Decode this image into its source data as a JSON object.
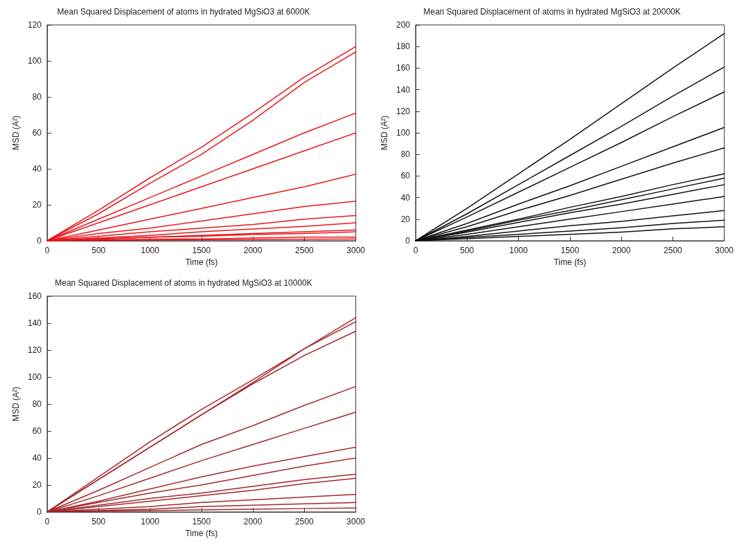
{
  "chart_data": [
    {
      "type": "line",
      "title": "Mean Squared Displacement of atoms in hydrated MgSiO3 at 6000K",
      "xlabel": "Time (fs)",
      "ylabel": "MSD (A²)",
      "x": [
        0,
        500,
        1000,
        1500,
        2000,
        2500,
        3000
      ],
      "xlim": [
        0,
        3000
      ],
      "xticks": [
        0,
        500,
        1000,
        1500,
        2000,
        2500,
        3000
      ],
      "ylim": [
        0,
        120
      ],
      "yticks": [
        0,
        20,
        40,
        60,
        80,
        100,
        120
      ],
      "series": [
        {
          "color": "#e8161b",
          "values": [
            0,
            17,
            35,
            52,
            71,
            91,
            108
          ]
        },
        {
          "color": "#e8161b",
          "values": [
            0,
            15,
            32,
            48,
            67,
            88,
            105
          ]
        },
        {
          "color": "#e8161b",
          "values": [
            0,
            12,
            24,
            36,
            48,
            60,
            71
          ]
        },
        {
          "color": "#e8161b",
          "values": [
            0,
            10,
            20,
            30,
            40,
            50,
            60
          ]
        },
        {
          "color": "#e8161b",
          "values": [
            0,
            6,
            12,
            18,
            24,
            30,
            37
          ]
        },
        {
          "color": "#e8161b",
          "values": [
            0,
            4,
            7,
            11,
            15,
            19,
            22
          ]
        },
        {
          "color": "#e8161b",
          "values": [
            0,
            2.5,
            5,
            7,
            9,
            12,
            14
          ]
        },
        {
          "color": "#e8161b",
          "values": [
            0,
            1.5,
            3,
            5,
            6.5,
            8,
            10
          ]
        },
        {
          "color": "#e8161b",
          "values": [
            0,
            1,
            2,
            3,
            4,
            5,
            6
          ]
        },
        {
          "color": "#e8161b",
          "values": [
            0,
            1,
            2,
            2.5,
            3.5,
            4,
            5
          ]
        },
        {
          "color": "#e8161b",
          "values": [
            0,
            0.5,
            1,
            1,
            1.5,
            2,
            2
          ]
        },
        {
          "color": "#e8161b",
          "values": [
            0,
            0.2,
            0.4,
            0.6,
            0.7,
            0.9,
            1
          ]
        }
      ]
    },
    {
      "type": "line",
      "title": "Mean Squared Displacement of atoms in hydrated MgSiO3 at 20000K",
      "xlabel": "Time (fs)",
      "ylabel": "MSD (A²)",
      "x": [
        0,
        500,
        1000,
        1500,
        2000,
        2500,
        3000
      ],
      "xlim": [
        0,
        3000
      ],
      "xticks": [
        0,
        500,
        1000,
        1500,
        2000,
        2500,
        3000
      ],
      "ylim": [
        0,
        200
      ],
      "yticks": [
        0,
        20,
        40,
        60,
        80,
        100,
        120,
        140,
        160,
        180,
        200
      ],
      "series": [
        {
          "color": "#111111",
          "values": [
            0,
            30,
            62,
            94,
            127,
            160,
            192
          ]
        },
        {
          "color": "#111111",
          "values": [
            0,
            25,
            52,
            79,
            106,
            134,
            161
          ]
        },
        {
          "color": "#111111",
          "values": [
            0,
            22,
            45,
            68,
            91,
            115,
            138
          ]
        },
        {
          "color": "#111111",
          "values": [
            0,
            16,
            34,
            51,
            69,
            87,
            105
          ]
        },
        {
          "color": "#111111",
          "values": [
            0,
            13,
            28,
            42,
            57,
            72,
            86
          ]
        },
        {
          "color": "#111111",
          "values": [
            0,
            10,
            20,
            31,
            41,
            52,
            62
          ]
        },
        {
          "color": "#111111",
          "values": [
            0,
            9,
            19,
            28,
            38,
            48,
            58
          ]
        },
        {
          "color": "#111111",
          "values": [
            0,
            8,
            17,
            26,
            34,
            43,
            52
          ]
        },
        {
          "color": "#111111",
          "values": [
            0,
            6,
            13,
            20,
            27,
            34,
            41
          ]
        },
        {
          "color": "#111111",
          "values": [
            0,
            4,
            9,
            14,
            18,
            23,
            28
          ]
        },
        {
          "color": "#111111",
          "values": [
            0,
            3,
            6,
            9,
            12,
            16,
            19
          ]
        },
        {
          "color": "#111111",
          "values": [
            0,
            2,
            4,
            6,
            8,
            11,
            13
          ]
        }
      ]
    },
    {
      "type": "line",
      "title": "Mean Squared Displacement of atoms in hydrated MgSiO3 at 10000K",
      "xlabel": "Time (fs)",
      "ylabel": "MSD (A²)",
      "x": [
        0,
        500,
        1000,
        1500,
        2000,
        2500,
        3000
      ],
      "xlim": [
        0,
        3000
      ],
      "xticks": [
        0,
        500,
        1000,
        1500,
        2000,
        2500,
        3000
      ],
      "ylim": [
        0,
        160
      ],
      "yticks": [
        0,
        20,
        40,
        60,
        80,
        100,
        120,
        140,
        160
      ],
      "series": [
        {
          "color": "#a3282c",
          "values": [
            0,
            26,
            52,
            76,
            98,
            121,
            144
          ]
        },
        {
          "color": "#a3282c",
          "values": [
            0,
            24,
            48,
            72,
            96,
            121,
            141
          ]
        },
        {
          "color": "#a3282c",
          "values": [
            0,
            24,
            48,
            72,
            95,
            116,
            134
          ]
        },
        {
          "color": "#a3282c",
          "values": [
            0,
            16,
            33,
            50,
            64,
            79,
            93
          ]
        },
        {
          "color": "#a3282c",
          "values": [
            0,
            12,
            25,
            38,
            50,
            62,
            74
          ]
        },
        {
          "color": "#a3282c",
          "values": [
            0,
            8,
            17,
            26,
            34,
            41,
            48
          ]
        },
        {
          "color": "#a3282c",
          "values": [
            0,
            7,
            14,
            20,
            27,
            34,
            40
          ]
        },
        {
          "color": "#a3282c",
          "values": [
            0,
            5,
            10,
            14,
            19,
            24,
            28
          ]
        },
        {
          "color": "#a3282c",
          "values": [
            0,
            4,
            8,
            12,
            16,
            21,
            25
          ]
        },
        {
          "color": "#a3282c",
          "values": [
            0,
            2,
            4,
            7,
            9,
            11,
            13
          ]
        },
        {
          "color": "#a3282c",
          "values": [
            0,
            1,
            2,
            4,
            5,
            6,
            7
          ]
        },
        {
          "color": "#a3282c",
          "values": [
            0,
            0.5,
            1,
            1.5,
            2,
            2.5,
            3
          ]
        }
      ]
    }
  ]
}
